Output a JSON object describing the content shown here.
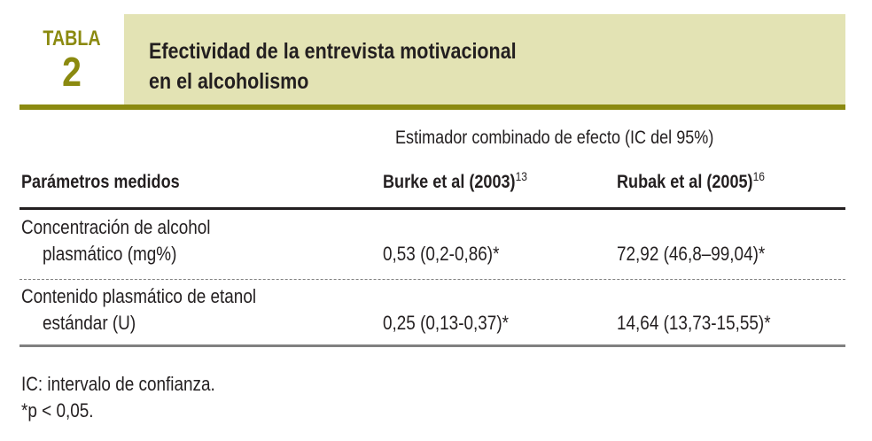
{
  "header": {
    "label_word": "TABLA",
    "label_number": "2",
    "title_line1": "Efectividad de la entrevista motivacional",
    "title_line2": "en el alcoholismo"
  },
  "table": {
    "super_header": "Estimador combinado de efecto (IC del 95%)",
    "columns": [
      {
        "label": "Parámetros medidos",
        "ref": ""
      },
      {
        "label": "Burke et al (2003)",
        "ref": "13"
      },
      {
        "label": "Rubak et al (2005)",
        "ref": "16"
      }
    ],
    "rows": [
      {
        "param_line1": "Concentración de alcohol",
        "param_line2": "plasmático (mg%)",
        "burke": "0,53 (0,2-0,86)*",
        "rubak": "72,92 (46,8–99,04)*"
      },
      {
        "param_line1": "Contenido plasmático de etanol",
        "param_line2": "estándar (U)",
        "burke": "0,25 (0,13-0,37)*",
        "rubak": "14,64 (13,73-15,55)*"
      }
    ]
  },
  "footnotes": [
    "IC: intervalo de confianza.",
    "*p < 0,05."
  ],
  "colors": {
    "accent": "#8b8a10",
    "title_band": "#e3e3b4",
    "text": "#231f20"
  }
}
